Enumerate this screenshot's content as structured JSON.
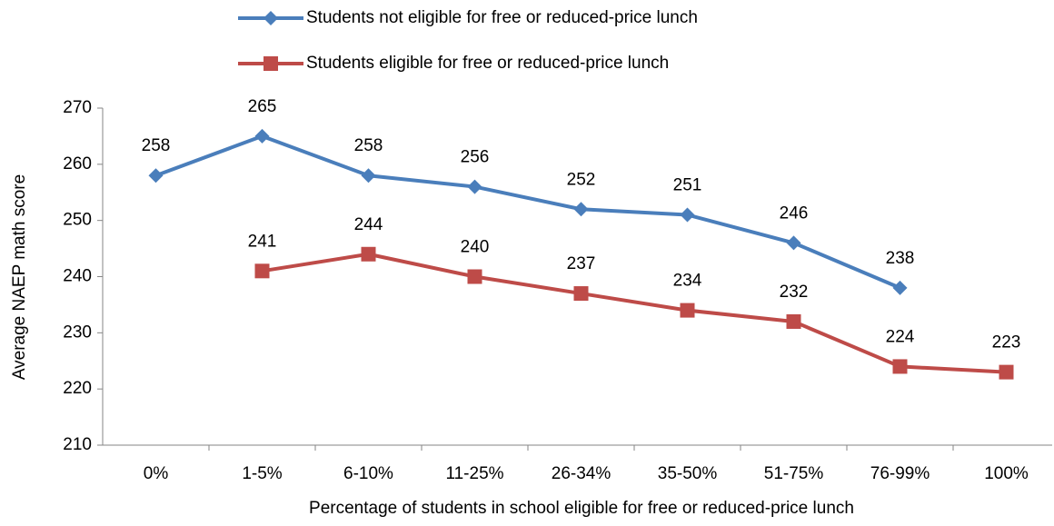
{
  "chart_data": {
    "type": "line",
    "x_label": "Percentage of students in school eligible for free or reduced-price lunch",
    "y_label": "Average NAEP math score",
    "categories": [
      "0%",
      "1-5%",
      "6-10%",
      "11-25%",
      "26-34%",
      "35-50%",
      "51-75%",
      "76-99%",
      "100%"
    ],
    "series": [
      {
        "name": "Students not eligible for free or reduced-price lunch",
        "color": "#4a7ebb",
        "marker": "diamond",
        "values": [
          258,
          265,
          258,
          256,
          252,
          251,
          246,
          238,
          null
        ]
      },
      {
        "name": "Students eligible for free or reduced-price lunch",
        "color": "#be4b48",
        "marker": "square",
        "values": [
          null,
          241,
          244,
          240,
          237,
          234,
          232,
          224,
          223
        ]
      }
    ],
    "ylim": [
      210,
      270
    ],
    "yticks": [
      210,
      220,
      230,
      240,
      250,
      260,
      270
    ],
    "grid": false,
    "legend": "top"
  }
}
